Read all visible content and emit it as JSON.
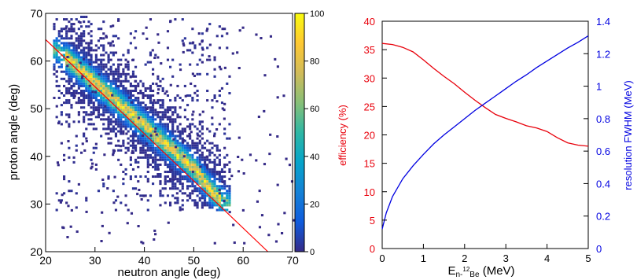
{
  "chart_data": [
    {
      "type": "heatmap",
      "title": "",
      "xlabel": "neutron angle (deg)",
      "ylabel": "proton angle (deg)",
      "xlim": [
        20,
        70
      ],
      "ylim": [
        20,
        70
      ],
      "x_ticks": [
        "20",
        "30",
        "40",
        "50",
        "60",
        "70"
      ],
      "y_ticks": [
        "20",
        "30",
        "40",
        "50",
        "60",
        "70"
      ],
      "colorbar": {
        "range": [
          0,
          100
        ],
        "ticks": [
          "0",
          "20",
          "40",
          "60",
          "80",
          "100"
        ],
        "colors": [
          "#352a87",
          "#0f5cdd",
          "#1481d6",
          "#06a4ca",
          "#2eb7a4",
          "#87bf77",
          "#d1bb59",
          "#fec832",
          "#f9fb0e"
        ]
      },
      "density_ridge": {
        "x": [
          22,
          25,
          30,
          35,
          40,
          45,
          50,
          53,
          55,
          57
        ],
        "y": [
          62,
          59.5,
          55,
          50.5,
          46,
          41.5,
          37,
          33,
          31,
          29.5
        ]
      },
      "fit_line": {
        "x": [
          20,
          65
        ],
        "y": [
          64.5,
          20
        ],
        "color": "#ff0000"
      },
      "grid": false
    },
    {
      "type": "line",
      "title": "",
      "xlabel_main": "E",
      "xlabel_sub": "n-",
      "xlabel_sup": "12",
      "xlabel_sub2": "Be",
      "xlabel_unit": " (MeV)",
      "xlim": [
        0,
        5
      ],
      "x_ticks": [
        "0",
        "1",
        "2",
        "3",
        "4",
        "5"
      ],
      "y_left": {
        "label": "efficiency (%)",
        "lim": [
          0,
          40
        ],
        "ticks": [
          "0",
          "5",
          "10",
          "15",
          "20",
          "25",
          "30",
          "35",
          "40"
        ],
        "color": "#e8000b"
      },
      "y_right": {
        "label": "resolution FWHM (MeV)",
        "lim": [
          0,
          1.4
        ],
        "ticks": [
          "0",
          "0.2",
          "0.4",
          "0.6",
          "0.8",
          "1",
          "1.2",
          "1.4"
        ],
        "color": "#0000e0"
      },
      "series": [
        {
          "axis": "left",
          "color": "#e8000b",
          "x": [
            0,
            0.25,
            0.5,
            0.75,
            1,
            1.25,
            1.5,
            1.75,
            2,
            2.25,
            2.5,
            2.75,
            3,
            3.25,
            3.5,
            3.75,
            4,
            4.25,
            4.5,
            4.75,
            5
          ],
          "y": [
            36.1,
            35.9,
            35.4,
            34.6,
            33.2,
            31.7,
            30.3,
            29.0,
            27.5,
            26.1,
            24.8,
            23.6,
            22.9,
            22.3,
            21.6,
            21.2,
            20.6,
            19.5,
            18.6,
            18.2,
            18.0
          ]
        },
        {
          "axis": "right",
          "color": "#0000e0",
          "x": [
            0,
            0.1,
            0.25,
            0.5,
            0.75,
            1,
            1.25,
            1.5,
            1.75,
            2,
            2.25,
            2.5,
            2.75,
            3,
            3.25,
            3.5,
            3.75,
            4,
            4.25,
            4.5,
            4.75,
            5
          ],
          "y": [
            0.12,
            0.22,
            0.32,
            0.43,
            0.51,
            0.58,
            0.645,
            0.7,
            0.75,
            0.8,
            0.85,
            0.895,
            0.94,
            0.985,
            1.03,
            1.07,
            1.115,
            1.155,
            1.195,
            1.235,
            1.27,
            1.31
          ]
        }
      ],
      "grid": false
    }
  ]
}
